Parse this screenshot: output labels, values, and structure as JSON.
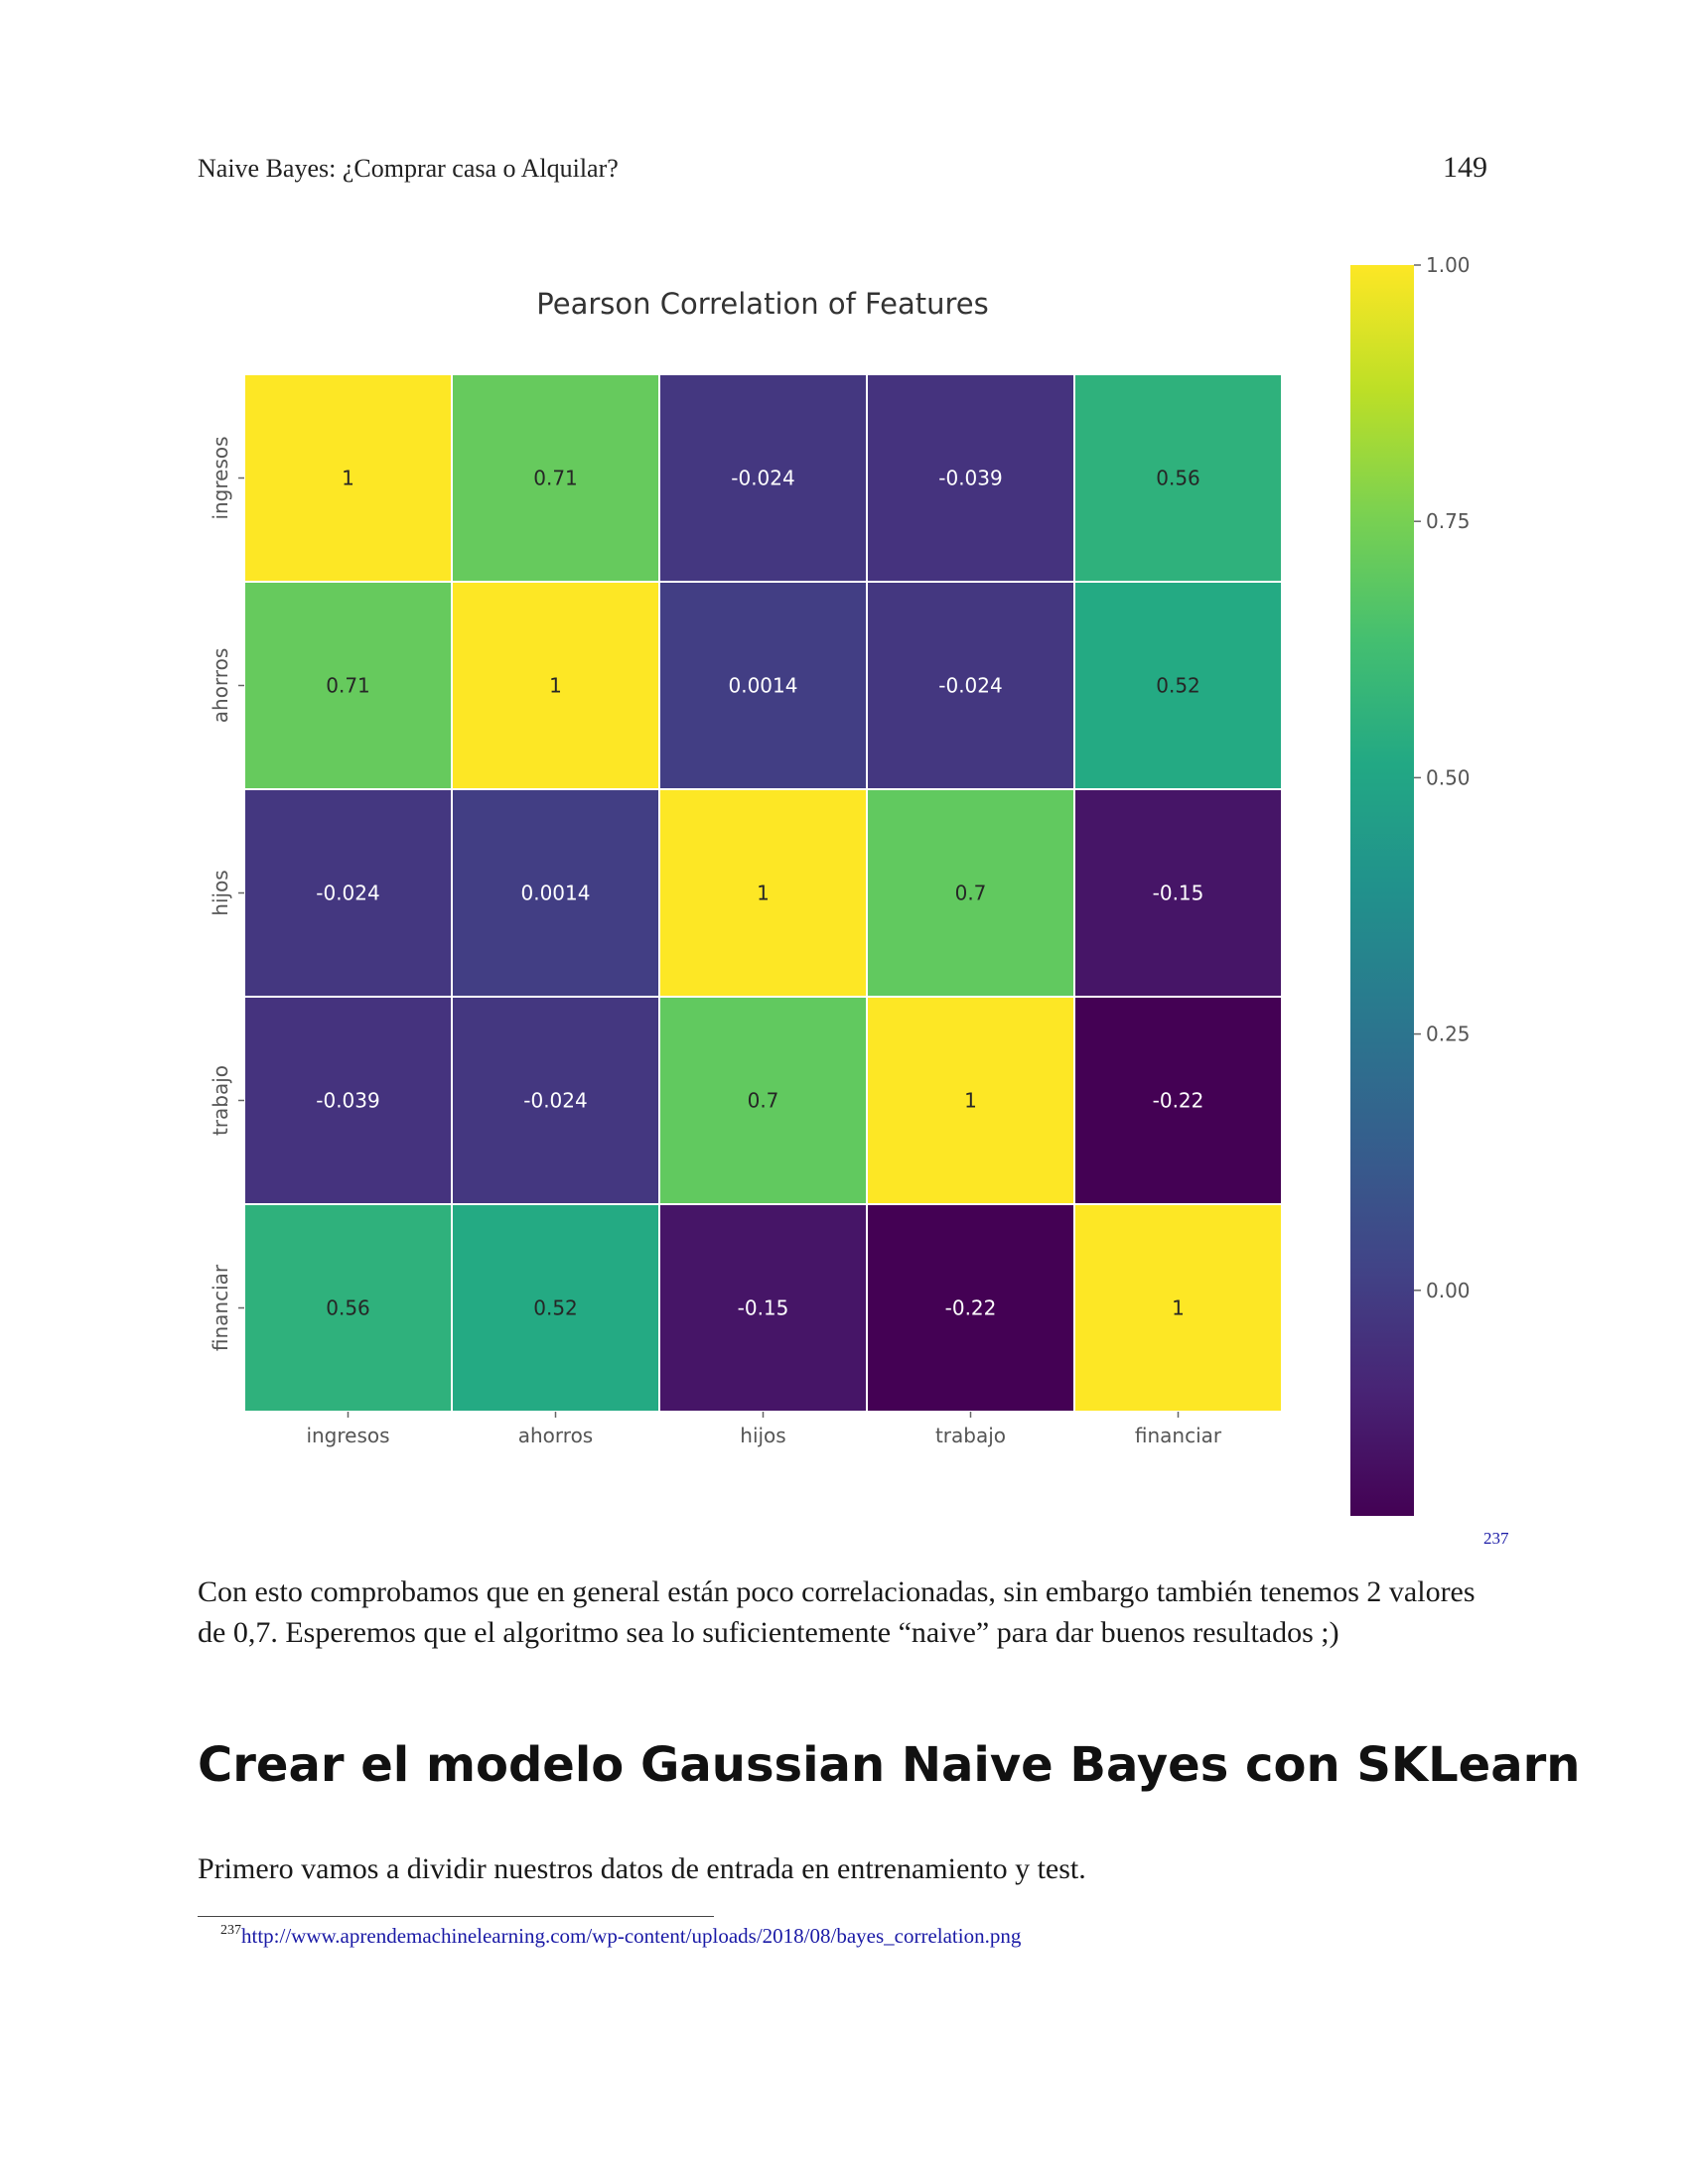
{
  "header": {
    "title": "Naive Bayes: ¿Comprar casa o Alquilar?",
    "page_number": "149"
  },
  "chart_data": {
    "type": "heatmap",
    "title": "Pearson Correlation of Features",
    "x_labels": [
      "ingresos",
      "ahorros",
      "hijos",
      "trabajo",
      "financiar"
    ],
    "y_labels": [
      "ingresos",
      "ahorros",
      "hijos",
      "trabajo",
      "financiar"
    ],
    "values": [
      [
        1,
        0.71,
        -0.024,
        -0.039,
        0.56
      ],
      [
        0.71,
        1,
        0.0014,
        -0.024,
        0.52
      ],
      [
        -0.024,
        0.0014,
        1,
        0.7,
        -0.15
      ],
      [
        -0.039,
        -0.024,
        0.7,
        1,
        -0.22
      ],
      [
        0.56,
        0.52,
        -0.15,
        -0.22,
        1
      ]
    ],
    "value_labels": [
      [
        "1",
        "0.71",
        "-0.024",
        "-0.039",
        "0.56"
      ],
      [
        "0.71",
        "1",
        "0.0014",
        "-0.024",
        "0.52"
      ],
      [
        "-0.024",
        "0.0014",
        "1",
        "0.7",
        "-0.15"
      ],
      [
        "-0.039",
        "-0.024",
        "0.7",
        "1",
        "-0.22"
      ],
      [
        "0.56",
        "0.52",
        "-0.15",
        "-0.22",
        "1"
      ]
    ],
    "colormap": "viridis",
    "color_range": [
      -0.22,
      1.0
    ],
    "colorbar_ticks": [
      1.0,
      0.75,
      0.5,
      0.25,
      0.0
    ],
    "colorbar_tick_labels": [
      "1.00",
      "0.75",
      "0.50",
      "0.25",
      "0.00"
    ],
    "grid_color": "#ffffff"
  },
  "footnote_ref": "237",
  "body": {
    "paragraph1": "Con esto comprobamos que en general están poco correlacionadas, sin embargo también tenemos 2 valores de 0,7. Esperemos que el algoritmo sea lo suficientemente “naive” para dar buenos resultados ;)",
    "section_heading": "Crear el modelo Gaussian Naive Bayes con SKLearn",
    "paragraph2": "Primero vamos a dividir nuestros datos de entrada en entrenamiento y test."
  },
  "footnote": {
    "number": "237",
    "url": "http://www.aprendemachinelearning.com/wp-content/uploads/2018/08/bayes_correlation.png"
  }
}
